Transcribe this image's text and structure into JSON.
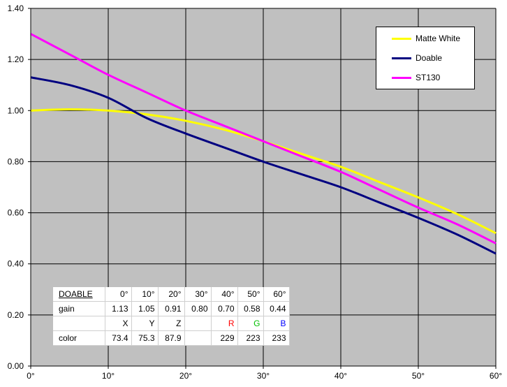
{
  "colors": {
    "plot_background": "#c0c0c0",
    "gridline": "#000000",
    "matte_white": "#ffff00",
    "doable": "#000080",
    "st130": "#ff00ff",
    "r_text": "#ff0000",
    "g_text": "#00c000",
    "b_text": "#0000ff"
  },
  "chart_data": {
    "type": "line",
    "title": "",
    "xlabel": "",
    "ylabel": "",
    "xlim": [
      0,
      60
    ],
    "ylim": [
      0,
      1.4
    ],
    "grid": true,
    "legend_position": "top-right",
    "x_tick_labels": [
      "0°",
      "10°",
      "20°",
      "30°",
      "40°",
      "50°",
      "60°"
    ],
    "y_tick_labels": [
      "0.00",
      "0.20",
      "0.40",
      "0.60",
      "0.80",
      "1.00",
      "1.20",
      "1.40"
    ],
    "x_ticks": [
      0,
      10,
      20,
      30,
      40,
      50,
      60
    ],
    "y_ticks": [
      0,
      0.2,
      0.4,
      0.6,
      0.8,
      1.0,
      1.2,
      1.4
    ],
    "series": [
      {
        "name": "Matte White",
        "x": [
          0,
          5,
          10,
          15,
          20,
          25,
          30,
          35,
          40,
          45,
          50,
          55,
          60
        ],
        "values": [
          1.0,
          1.005,
          1.0,
          0.985,
          0.96,
          0.925,
          0.88,
          0.83,
          0.78,
          0.72,
          0.66,
          0.595,
          0.52
        ]
      },
      {
        "name": "Doable",
        "x": [
          0,
          5,
          10,
          15,
          20,
          25,
          30,
          35,
          40,
          45,
          50,
          55,
          60
        ],
        "values": [
          1.13,
          1.1,
          1.05,
          0.97,
          0.91,
          0.855,
          0.8,
          0.75,
          0.7,
          0.64,
          0.58,
          0.515,
          0.44
        ]
      },
      {
        "name": "ST130",
        "x": [
          0,
          5,
          10,
          15,
          20,
          25,
          30,
          35,
          40,
          45,
          50,
          55,
          60
        ],
        "values": [
          1.3,
          1.22,
          1.14,
          1.07,
          1.0,
          0.94,
          0.88,
          0.82,
          0.76,
          0.69,
          0.62,
          0.555,
          0.48
        ]
      }
    ],
    "table": {
      "rows": [
        [
          "DOABLE",
          "0°",
          "10°",
          "20°",
          "30°",
          "40°",
          "50°",
          "60°"
        ],
        [
          "gain",
          "1.13",
          "1.05",
          "0.91",
          "0.80",
          "0.70",
          "0.58",
          "0.44"
        ],
        [
          "",
          "X",
          "Y",
          "Z",
          "",
          "R",
          "G",
          "B"
        ],
        [
          "color",
          "73.4",
          "75.3",
          "87.9",
          "",
          "229",
          "223",
          "233"
        ]
      ]
    }
  }
}
